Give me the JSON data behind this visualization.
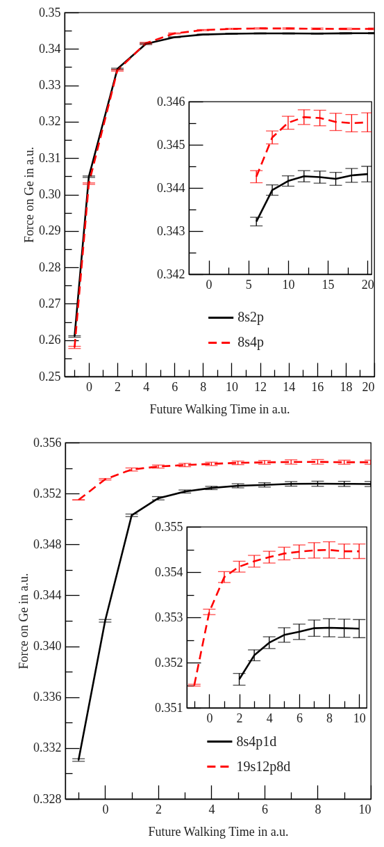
{
  "chart_data": [
    {
      "type": "line",
      "xlabel": "Future Walking Time in a.u.",
      "ylabel": "Force on Ge in a.u.",
      "x": [
        -1,
        0,
        2,
        4,
        6,
        8,
        10,
        12,
        14,
        16,
        18,
        20
      ],
      "xlim": [
        -1.7,
        20
      ],
      "xticks": [
        {
          "value": -1,
          "label": null
        },
        0,
        {
          "value": 1,
          "label": null
        },
        2,
        {
          "value": 3,
          "label": null
        },
        4,
        {
          "value": 5,
          "label": null
        },
        6,
        {
          "value": 7,
          "label": null
        },
        8,
        {
          "value": 9,
          "label": null
        },
        10,
        {
          "value": 11,
          "label": null
        },
        12,
        {
          "value": 13,
          "label": null
        },
        14,
        {
          "value": 15,
          "label": null
        },
        16,
        {
          "value": 17,
          "label": null
        },
        18,
        {
          "value": 19,
          "label": null
        },
        20
      ],
      "ylim": [
        0.25,
        0.35
      ],
      "yticks": [
        0.25,
        {
          "value": 0.255,
          "label": null
        },
        0.26,
        {
          "value": 0.265,
          "label": null
        },
        0.27,
        {
          "value": 0.275,
          "label": null
        },
        0.28,
        {
          "value": 0.285,
          "label": null
        },
        0.29,
        {
          "value": 0.295,
          "label": null
        },
        {
          "value": 0.3,
          "label": "0.30"
        },
        {
          "value": 0.305,
          "label": null
        },
        0.31,
        {
          "value": 0.315,
          "label": null
        },
        0.32,
        {
          "value": 0.325,
          "label": null
        },
        0.33,
        {
          "value": 0.335,
          "label": null
        },
        0.34,
        {
          "value": 0.345,
          "label": null
        },
        0.35
      ],
      "grid": false,
      "legend": "bottom",
      "marker": "none",
      "series": [
        {
          "name": "8s2p",
          "color": "#000000",
          "line_style": "solid",
          "values": [
            0.261,
            0.3049,
            0.3345,
            0.3414,
            0.34322,
            0.34395,
            0.34416,
            0.34427,
            0.34425,
            0.34421,
            0.34429,
            0.34432
          ],
          "errors": [
            0.0002,
            0.0002,
            0.0002,
            0.0002,
            0.0001,
            0.00012,
            0.00012,
            0.00013,
            0.00014,
            0.00015,
            0.00016,
            0.00018
          ]
        },
        {
          "name": "8s4p",
          "color": "#ff0000",
          "line_style": "dashed",
          "values": [
            0.258,
            0.303,
            0.3341,
            0.3416,
            0.34426,
            0.34517,
            0.34551,
            0.34564,
            0.34562,
            0.34553,
            0.3455,
            0.34552
          ],
          "errors": [
            0.0003,
            0.0002,
            0.0002,
            0.0002,
            0.00014,
            0.00015,
            0.00015,
            0.00017,
            0.00018,
            0.0002,
            0.0002,
            0.00022
          ]
        }
      ]
    },
    {
      "type": "line",
      "x": [
        6,
        8,
        10,
        12,
        14,
        16,
        18,
        20
      ],
      "xlim": [
        -2.5,
        20.5
      ],
      "xticks": [
        0,
        {
          "value": 2.5,
          "label": null
        },
        5,
        {
          "value": 7.5,
          "label": null
        },
        10,
        {
          "value": 12.5,
          "label": null
        },
        15,
        {
          "value": 17.5,
          "label": null
        },
        20
      ],
      "ylim": [
        0.342,
        0.346
      ],
      "yticks": [
        0.342,
        {
          "value": 0.3425,
          "label": null
        },
        0.343,
        {
          "value": 0.3435,
          "label": null
        },
        0.344,
        {
          "value": 0.3445,
          "label": null
        },
        0.345,
        {
          "value": 0.3455,
          "label": null
        },
        0.346
      ],
      "grid": false,
      "marker": "none",
      "series": [
        {
          "color": "#000000",
          "line_style": "solid",
          "values": [
            0.34322,
            0.34395,
            0.34416,
            0.34427,
            0.34425,
            0.34421,
            0.34429,
            0.34432
          ],
          "errors": [
            0.0001,
            0.00012,
            0.00012,
            0.00013,
            0.00014,
            0.00015,
            0.00016,
            0.00018
          ]
        },
        {
          "color": "#ff0000",
          "line_style": "dashed",
          "values": [
            0.34426,
            0.34517,
            0.34551,
            0.34564,
            0.34562,
            0.34553,
            0.3455,
            0.34552
          ],
          "errors": [
            0.00014,
            0.00015,
            0.00015,
            0.00017,
            0.00018,
            0.0002,
            0.0002,
            0.00022
          ]
        }
      ]
    },
    {
      "type": "line",
      "xlabel": "Future Walking Time in a.u.",
      "ylabel": "Force on Ge in a.u.",
      "x": [
        -1,
        0,
        1,
        2,
        3,
        4,
        5,
        6,
        7,
        8,
        9,
        10
      ],
      "xlim": [
        -1.5,
        10
      ],
      "xticks": [
        {
          "value": -1,
          "label": null
        },
        0,
        {
          "value": 1,
          "label": null
        },
        2,
        {
          "value": 3,
          "label": null
        },
        4,
        {
          "value": 5,
          "label": null
        },
        6,
        {
          "value": 7,
          "label": null
        },
        8,
        {
          "value": 9,
          "label": null
        },
        10
      ],
      "ylim": [
        0.328,
        0.356
      ],
      "yticks": [
        0.328,
        {
          "value": 0.33,
          "label": null
        },
        0.332,
        {
          "value": 0.334,
          "label": null
        },
        0.336,
        {
          "value": 0.338,
          "label": null
        },
        {
          "value": 0.34,
          "label": "0.340"
        },
        {
          "value": 0.342,
          "label": null
        },
        0.344,
        {
          "value": 0.346,
          "label": null
        },
        0.348,
        {
          "value": 0.35,
          "label": null
        },
        0.352,
        {
          "value": 0.354,
          "label": null
        },
        0.356
      ],
      "grid": false,
      "legend": "bottom",
      "marker": "none",
      "series": [
        {
          "name": "8s4p1d",
          "color": "#000000",
          "line_style": "solid",
          "values": [
            0.33106,
            0.342,
            0.35029,
            0.35163,
            0.35216,
            0.35244,
            0.35261,
            0.35268,
            0.35276,
            0.35277,
            0.35276,
            0.35275
          ],
          "errors": [
            0.0001,
            0.0001,
            0.0001,
            0.00013,
            0.00012,
            0.00013,
            0.00016,
            0.00017,
            0.00018,
            0.0002,
            0.0002,
            0.0002
          ]
        },
        {
          "name": "19s12p8d",
          "color": "#ff0000",
          "line_style": "dashed",
          "values": [
            0.3515,
            0.35312,
            0.35389,
            0.35412,
            0.35424,
            0.35433,
            0.35441,
            0.35445,
            0.35448,
            0.35449,
            0.35446,
            0.35446
          ],
          "errors": [
            null,
            6e-05,
            0.00012,
            0.00012,
            0.00013,
            0.00013,
            0.00014,
            0.00015,
            0.00017,
            0.00018,
            0.00016,
            0.00016
          ]
        }
      ]
    },
    {
      "type": "line",
      "xlim": [
        -1.5,
        10.5
      ],
      "xticks": [
        {
          "value": -1,
          "label": null
        },
        0,
        {
          "value": 1,
          "label": null
        },
        2,
        {
          "value": 3,
          "label": null
        },
        4,
        {
          "value": 5,
          "label": null
        },
        6,
        {
          "value": 7,
          "label": null
        },
        8,
        {
          "value": 9,
          "label": null
        },
        10
      ],
      "ylim": [
        0.351,
        0.355
      ],
      "yticks": [
        0.351,
        {
          "value": 0.3515,
          "label": null
        },
        0.352,
        {
          "value": 0.3525,
          "label": null
        },
        0.353,
        {
          "value": 0.3535,
          "label": null
        },
        0.354,
        {
          "value": 0.3545,
          "label": null
        },
        0.355
      ],
      "grid": false,
      "marker": "none",
      "series": [
        {
          "color": "#000000",
          "line_style": "solid",
          "x": [
            2,
            3,
            4,
            5,
            6,
            7,
            8,
            9,
            10
          ],
          "values": [
            0.35163,
            0.35216,
            0.35244,
            0.35261,
            0.35268,
            0.35276,
            0.35277,
            0.35276,
            0.35275
          ],
          "errors": [
            0.00013,
            0.00012,
            0.00013,
            0.00016,
            0.00017,
            0.00018,
            0.0002,
            0.0002,
            0.0002
          ]
        },
        {
          "color": "#ff0000",
          "line_style": "dashed",
          "x": [
            -1,
            0,
            1,
            2,
            3,
            4,
            5,
            6,
            7,
            8,
            9,
            10
          ],
          "values": [
            0.3515,
            0.35312,
            0.35389,
            0.35412,
            0.35424,
            0.35433,
            0.35441,
            0.35445,
            0.35448,
            0.35449,
            0.35446,
            0.35446
          ],
          "errors": [
            2e-05,
            6e-05,
            0.00012,
            0.00012,
            0.00013,
            0.00013,
            0.00014,
            0.00015,
            0.00017,
            0.00018,
            0.00016,
            0.00016
          ]
        }
      ]
    }
  ]
}
